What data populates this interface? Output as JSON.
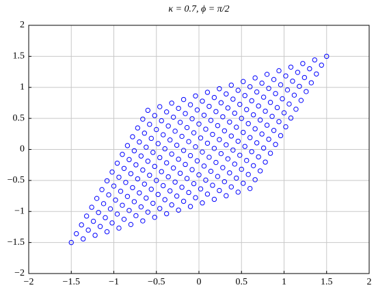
{
  "chart_data": {
    "type": "scatter",
    "title": "κ = 0.7, ϕ = π/2",
    "color": "#0000ff",
    "grid": true,
    "xlim": [
      -2,
      2
    ],
    "ylim": [
      -2,
      2
    ],
    "xticks": [
      {
        "value": -2,
        "label": "−2"
      },
      {
        "value": -1.5,
        "label": "−1.5"
      },
      {
        "value": -1,
        "label": "−1"
      },
      {
        "value": -0.5,
        "label": "−0.5"
      },
      0,
      0.5,
      1,
      1.5,
      2
    ],
    "yticks": [
      {
        "value": -2,
        "label": "−2"
      },
      {
        "value": -1.5,
        "label": "−1.5"
      },
      {
        "value": -1,
        "label": "−1"
      },
      {
        "value": -0.5,
        "label": "−0.5"
      },
      0,
      0.5,
      1,
      1.5,
      2
    ],
    "x": [
      -1.5,
      -1.36,
      -1.22,
      -1.08,
      -0.94,
      -0.8,
      -0.66,
      -0.52,
      -0.38,
      -0.24,
      -0.1,
      0.04,
      0.18,
      0.32,
      0.46,
      0.6,
      -1.44,
      -1.3,
      -1.16,
      -1.02,
      -0.88,
      -0.74,
      -0.6,
      -0.46,
      -0.32,
      -0.18,
      -0.04,
      0.1,
      0.24,
      0.38,
      0.52,
      0.66,
      -1.38,
      -1.24,
      -1.1,
      -0.96,
      -0.82,
      -0.68,
      -0.54,
      -0.4,
      -0.26,
      -0.12,
      0.02,
      0.16,
      0.3,
      0.44,
      0.58,
      0.72,
      -1.32,
      -1.18,
      -1.04,
      -0.9,
      -0.76,
      -0.62,
      -0.48,
      -0.34,
      -0.2,
      -0.06,
      0.08,
      0.22,
      0.36,
      0.5,
      0.64,
      0.78,
      -1.26,
      -1.12,
      -0.98,
      -0.84,
      -0.7,
      -0.56,
      -0.42,
      -0.28,
      -0.14,
      0,
      0.14,
      0.28,
      0.42,
      0.56,
      0.7,
      0.84,
      -1.2,
      -1.06,
      -0.92,
      -0.78,
      -0.64,
      -0.5,
      -0.36,
      -0.22,
      -0.08,
      0.06,
      0.2,
      0.34,
      0.48,
      0.62,
      0.76,
      0.9,
      -1.14,
      -1,
      -0.86,
      -0.72,
      -0.58,
      -0.44,
      -0.3,
      -0.16,
      -0.02,
      0.12,
      0.26,
      0.4,
      0.54,
      0.68,
      0.82,
      0.96,
      -1.08,
      -0.94,
      -0.8,
      -0.66,
      -0.52,
      -0.38,
      -0.24,
      -0.1,
      0.04,
      0.18,
      0.32,
      0.46,
      0.6,
      0.74,
      0.88,
      1.02,
      -1.02,
      -0.88,
      -0.74,
      -0.6,
      -0.46,
      -0.32,
      -0.18,
      -0.04,
      0.1,
      0.24,
      0.38,
      0.52,
      0.66,
      0.8,
      0.94,
      1.08,
      -0.96,
      -0.82,
      -0.68,
      -0.54,
      -0.4,
      -0.26,
      -0.12,
      0.02,
      0.16,
      0.3,
      0.44,
      0.58,
      0.72,
      0.86,
      1,
      1.14,
      -0.9,
      -0.76,
      -0.62,
      -0.48,
      -0.34,
      -0.2,
      -0.06,
      0.08,
      0.22,
      0.36,
      0.5,
      0.64,
      0.78,
      0.92,
      1.06,
      1.2,
      -0.84,
      -0.7,
      -0.56,
      -0.42,
      -0.28,
      -0.14,
      0,
      0.14,
      0.28,
      0.42,
      0.56,
      0.7,
      0.84,
      0.98,
      1.12,
      1.26,
      -0.78,
      -0.64,
      -0.5,
      -0.36,
      -0.22,
      -0.08,
      0.06,
      0.2,
      0.34,
      0.48,
      0.62,
      0.76,
      0.9,
      1.04,
      1.18,
      1.32,
      -0.72,
      -0.58,
      -0.44,
      -0.3,
      -0.16,
      -0.02,
      0.12,
      0.26,
      0.4,
      0.54,
      0.68,
      0.82,
      0.96,
      1.1,
      1.24,
      1.38,
      -0.66,
      -0.52,
      -0.38,
      -0.24,
      -0.1,
      0.04,
      0.18,
      0.32,
      0.46,
      0.6,
      0.74,
      0.88,
      1.02,
      1.16,
      1.3,
      1.44,
      -0.6,
      -0.46,
      -0.32,
      -0.18,
      -0.04,
      0.1,
      0.24,
      0.38,
      0.52,
      0.66,
      0.8,
      0.94,
      1.08,
      1.22,
      1.36,
      1.5
    ],
    "y": [
      -1.5,
      -1.442,
      -1.384,
      -1.326,
      -1.268,
      -1.21,
      -1.152,
      -1.094,
      -1.036,
      -0.978,
      -0.92,
      -0.862,
      -0.804,
      -0.746,
      -0.688,
      -0.63,
      -1.358,
      -1.3,
      -1.242,
      -1.184,
      -1.126,
      -1.068,
      -1.01,
      -0.952,
      -0.894,
      -0.836,
      -0.778,
      -0.72,
      -0.662,
      -0.604,
      -0.546,
      -0.488,
      -1.216,
      -1.158,
      -1.1,
      -1.042,
      -0.984,
      -0.926,
      -0.868,
      -0.81,
      -0.752,
      -0.694,
      -0.636,
      -0.578,
      -0.52,
      -0.462,
      -0.404,
      -0.346,
      -1.074,
      -1.016,
      -0.958,
      -0.9,
      -0.842,
      -0.784,
      -0.726,
      -0.668,
      -0.61,
      -0.552,
      -0.494,
      -0.436,
      -0.378,
      -0.32,
      -0.262,
      -0.204,
      -0.932,
      -0.874,
      -0.816,
      -0.758,
      -0.7,
      -0.642,
      -0.584,
      -0.526,
      -0.468,
      -0.41,
      -0.352,
      -0.294,
      -0.236,
      -0.178,
      -0.12,
      -0.062,
      -0.79,
      -0.732,
      -0.674,
      -0.616,
      -0.558,
      -0.5,
      -0.442,
      -0.384,
      -0.326,
      -0.268,
      -0.21,
      -0.152,
      -0.094,
      -0.036,
      0.022,
      0.08,
      -0.648,
      -0.59,
      -0.532,
      -0.474,
      -0.416,
      -0.358,
      -0.3,
      -0.242,
      -0.184,
      -0.126,
      -0.068,
      -0.01,
      0.048,
      0.106,
      0.164,
      0.222,
      -0.506,
      -0.448,
      -0.39,
      -0.332,
      -0.274,
      -0.216,
      -0.158,
      -0.1,
      -0.042,
      0.016,
      0.074,
      0.132,
      0.19,
      0.248,
      0.306,
      0.364,
      -0.364,
      -0.306,
      -0.248,
      -0.19,
      -0.132,
      -0.074,
      -0.016,
      0.042,
      0.1,
      0.158,
      0.216,
      0.274,
      0.332,
      0.39,
      0.448,
      0.506,
      -0.222,
      -0.164,
      -0.106,
      -0.048,
      0.01,
      0.068,
      0.126,
      0.184,
      0.242,
      0.3,
      0.358,
      0.416,
      0.474,
      0.532,
      0.59,
      0.648,
      -0.08,
      -0.022,
      0.036,
      0.094,
      0.152,
      0.21,
      0.268,
      0.326,
      0.384,
      0.442,
      0.5,
      0.558,
      0.616,
      0.674,
      0.732,
      0.79,
      0.062,
      0.12,
      0.178,
      0.236,
      0.294,
      0.352,
      0.41,
      0.468,
      0.526,
      0.584,
      0.642,
      0.7,
      0.758,
      0.816,
      0.874,
      0.932,
      0.204,
      0.262,
      0.32,
      0.378,
      0.436,
      0.494,
      0.552,
      0.61,
      0.668,
      0.726,
      0.784,
      0.842,
      0.9,
      0.958,
      1.016,
      1.074,
      0.346,
      0.404,
      0.462,
      0.52,
      0.578,
      0.636,
      0.694,
      0.752,
      0.81,
      0.868,
      0.926,
      0.984,
      1.042,
      1.1,
      1.158,
      1.216,
      0.488,
      0.546,
      0.604,
      0.662,
      0.72,
      0.778,
      0.836,
      0.894,
      0.952,
      1.01,
      1.068,
      1.126,
      1.184,
      1.242,
      1.3,
      1.358,
      0.63,
      0.688,
      0.746,
      0.804,
      0.862,
      0.92,
      0.978,
      1.036,
      1.094,
      1.152,
      1.21,
      1.268,
      1.326,
      1.384,
      1.442,
      1.5
    ]
  }
}
